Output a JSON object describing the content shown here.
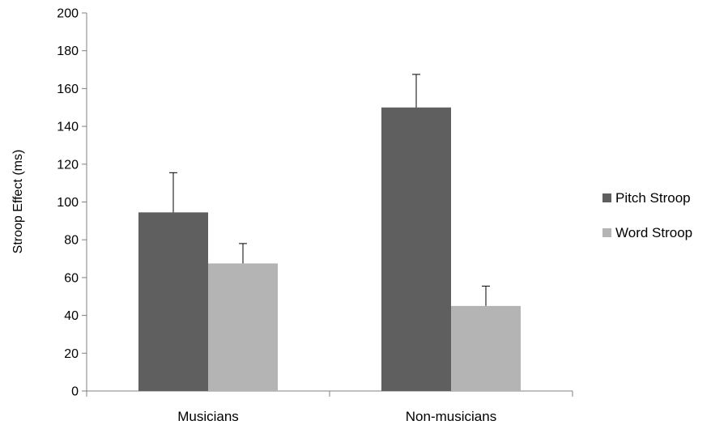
{
  "chart_data": {
    "type": "bar",
    "title": "",
    "xlabel": "",
    "ylabel": "Stroop Effect (ms)",
    "ylim": [
      0,
      200
    ],
    "yticks": [
      0,
      20,
      40,
      60,
      80,
      100,
      120,
      140,
      160,
      180,
      200
    ],
    "categories": [
      "Musicians",
      "Non-musicians"
    ],
    "series": [
      {
        "name": "Pitch Stroop",
        "color": "#5f5f5f",
        "values": [
          94.5,
          150
        ],
        "error_plus": [
          21,
          17.5
        ]
      },
      {
        "name": "Word Stroop",
        "color": "#b4b4b4",
        "values": [
          67.5,
          45
        ],
        "error_plus": [
          10.5,
          10.5
        ]
      }
    ],
    "grid": false,
    "legend_position": "right",
    "error_bars": "upper-only"
  }
}
